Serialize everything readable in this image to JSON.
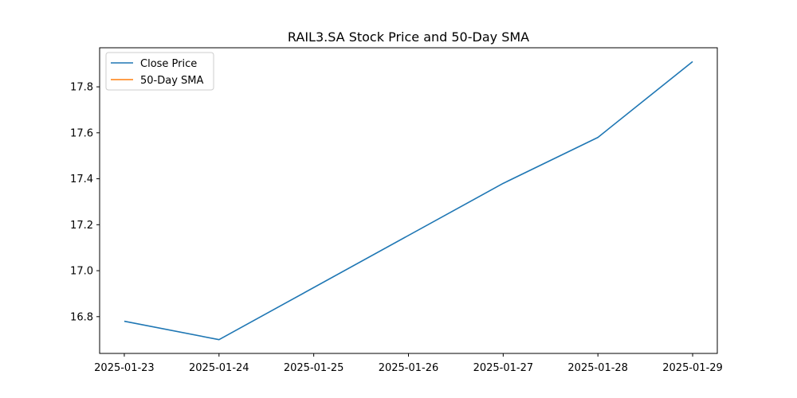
{
  "chart_data": {
    "type": "line",
    "title": "RAIL3.SA Stock Price and 50-Day SMA",
    "xlabel": "",
    "ylabel": "",
    "x": [
      "2025-01-23",
      "2025-01-24",
      "2025-01-25",
      "2025-01-26",
      "2025-01-27",
      "2025-01-28",
      "2025-01-29"
    ],
    "x_ticks": [
      "2025-01-23",
      "2025-01-24",
      "2025-01-25",
      "2025-01-26",
      "2025-01-27",
      "2025-01-28",
      "2025-01-29"
    ],
    "xlim": [
      "2025-01-22T17:45",
      "2025-01-29T06:15"
    ],
    "y_ticks": [
      16.8,
      17.0,
      17.2,
      17.4,
      17.6,
      17.8
    ],
    "ylim": [
      16.64,
      17.97
    ],
    "grid": false,
    "legend_position": "top-left",
    "series": [
      {
        "name": "Close Price",
        "color": "#1f77b4",
        "points": [
          {
            "x": "2025-01-23",
            "y": 16.78
          },
          {
            "x": "2025-01-24",
            "y": 16.7
          },
          {
            "x": "2025-01-27",
            "y": 17.38
          },
          {
            "x": "2025-01-28",
            "y": 17.58
          },
          {
            "x": "2025-01-29",
            "y": 17.91
          }
        ]
      },
      {
        "name": "50-Day SMA",
        "color": "#ff7f0e",
        "points": []
      }
    ]
  }
}
